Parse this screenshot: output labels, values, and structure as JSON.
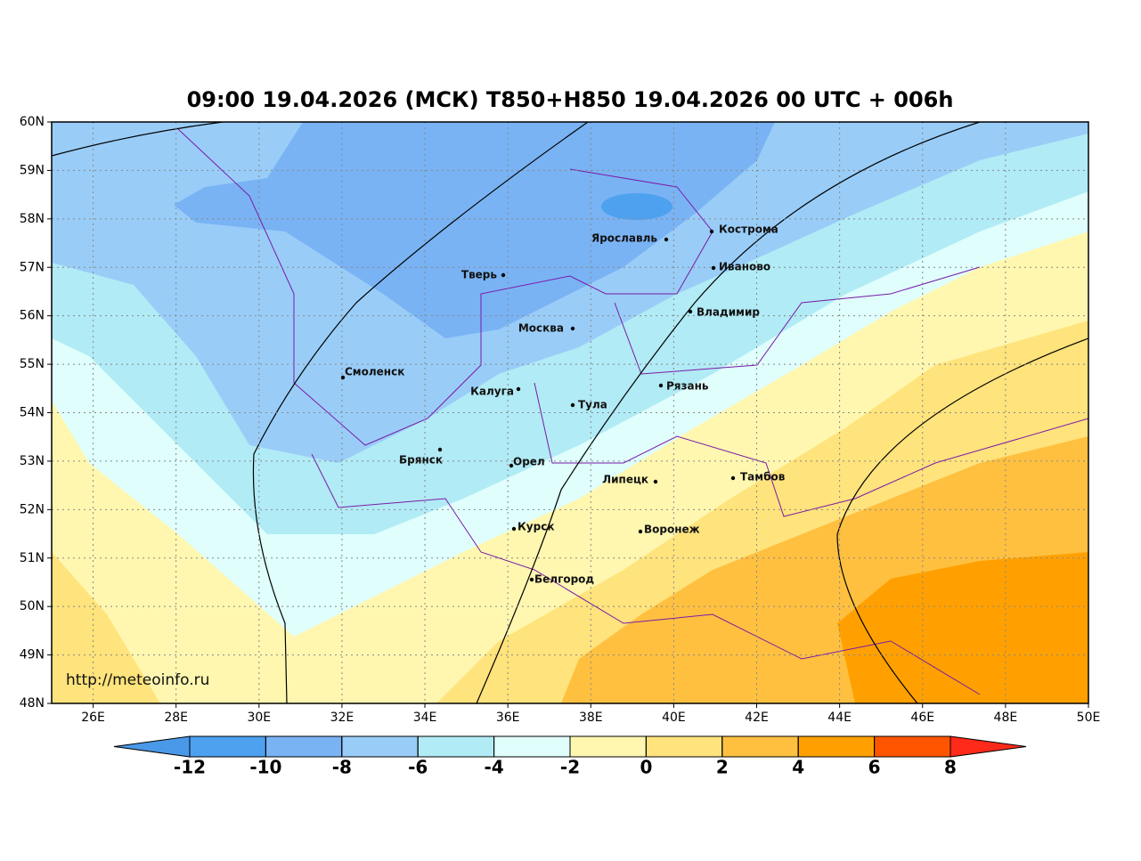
{
  "title": "09:00 19.04.2026 (МСК) T850+H850 19.04.2026 00 UTC + 006h",
  "map": {
    "lat_ticks": [
      {
        "value": 60,
        "label": "60N"
      },
      {
        "value": 59,
        "label": "59N"
      },
      {
        "value": 58,
        "label": "58N"
      },
      {
        "value": 57,
        "label": "57N"
      },
      {
        "value": 56,
        "label": "56N"
      },
      {
        "value": 55,
        "label": "55N"
      },
      {
        "value": 54,
        "label": "54N"
      },
      {
        "value": 53,
        "label": "53N"
      },
      {
        "value": 52,
        "label": "52N"
      },
      {
        "value": 51,
        "label": "51N"
      },
      {
        "value": 50,
        "label": "50N"
      },
      {
        "value": 49,
        "label": "49N"
      },
      {
        "value": 48,
        "label": "48N"
      }
    ],
    "lat_range": [
      48,
      60
    ],
    "lon_ticks": [
      {
        "value": 26,
        "label": "26E"
      },
      {
        "value": 28,
        "label": "28E"
      },
      {
        "value": 30,
        "label": "30E"
      },
      {
        "value": 32,
        "label": "32E"
      },
      {
        "value": 34,
        "label": "34E"
      },
      {
        "value": 36,
        "label": "36E"
      },
      {
        "value": 38,
        "label": "38E"
      },
      {
        "value": 40,
        "label": "40E"
      },
      {
        "value": 42,
        "label": "42E"
      },
      {
        "value": 44,
        "label": "44E"
      },
      {
        "value": 46,
        "label": "46E"
      },
      {
        "value": 48,
        "label": "48E"
      },
      {
        "value": 50,
        "label": "50E"
      }
    ],
    "lon_range": [
      25,
      50
    ],
    "cities": [
      "Ярославль",
      "Кострома",
      "Тверь",
      "Иваново",
      "Владимир",
      "Москва",
      "Смоленск",
      "Калуга",
      "Рязань",
      "Тула",
      "Брянск",
      "Орел",
      "Липецк",
      "Тамбов",
      "Курск",
      "Воронеж",
      "Белгород"
    ],
    "watermark": "http://meteoinfo.ru"
  },
  "colorbar": {
    "ticks": [
      -12,
      -10,
      -8,
      -6,
      -4,
      -2,
      0,
      2,
      4,
      6,
      8
    ],
    "colors": [
      "#4a98e8",
      "#4ea1ef",
      "#79b3f4",
      "#99cdf8",
      "#b1ebf5",
      "#dffefc",
      "#fff7b0",
      "#ffe37c",
      "#ffc040",
      "#ffa000",
      "#ff5500",
      "#ff2a1a"
    ]
  }
}
